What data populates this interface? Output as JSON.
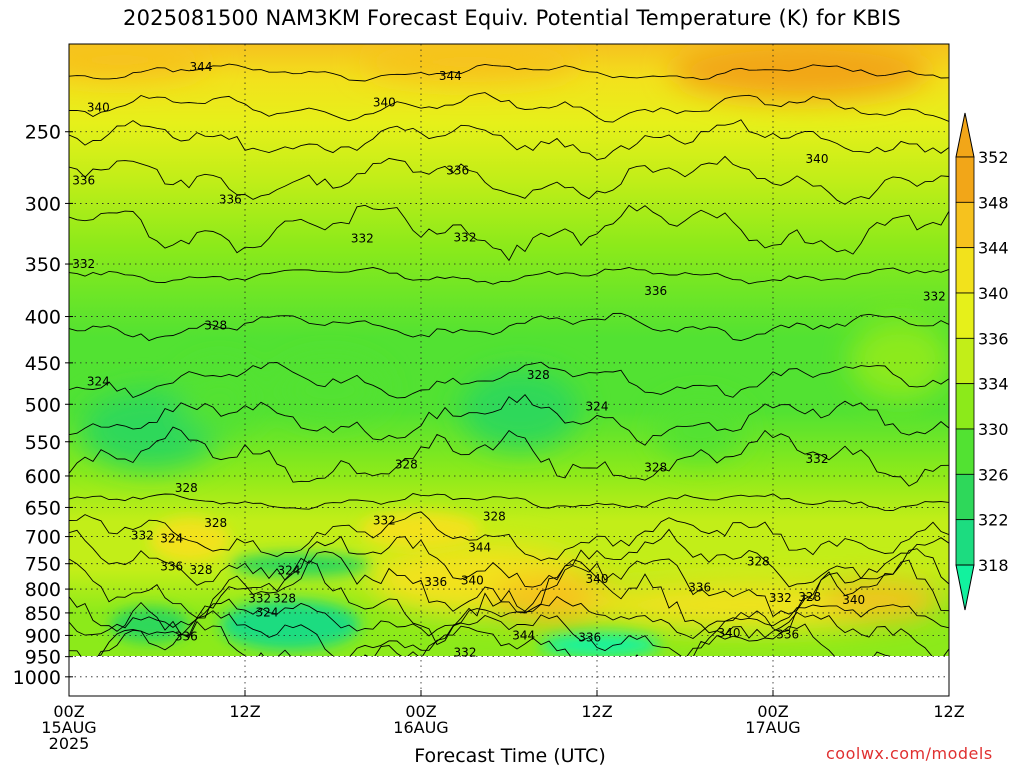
{
  "chart_data": {
    "type": "heatmap",
    "title": "2025081500 NAM3KM Forecast Equiv. Potential Temperature (K) for KBIS",
    "xlabel": "Forecast Time (UTC)",
    "ylabel": "",
    "x_ticks": [
      {
        "hour": 0,
        "label": [
          "00Z",
          "15AUG",
          "2025"
        ]
      },
      {
        "hour": 12,
        "label": [
          "12Z"
        ]
      },
      {
        "hour": 24,
        "label": [
          "00Z",
          "16AUG"
        ]
      },
      {
        "hour": 36,
        "label": [
          "12Z"
        ]
      },
      {
        "hour": 48,
        "label": [
          "00Z",
          "17AUG"
        ]
      },
      {
        "hour": 60,
        "label": [
          "12Z"
        ]
      }
    ],
    "xlim": [
      0,
      60
    ],
    "y_ticks": [
      250,
      300,
      350,
      400,
      450,
      500,
      550,
      600,
      650,
      700,
      750,
      800,
      850,
      900,
      950,
      1000
    ],
    "ylim": [
      1050,
      200
    ],
    "y_scale": "log",
    "colorbar": {
      "ticks": [
        352,
        348,
        344,
        340,
        336,
        334,
        330,
        326,
        322,
        318
      ],
      "colors": [
        "#f2a618",
        "#f6c21e",
        "#f2e21c",
        "#e6f01a",
        "#c2ee18",
        "#8cea1a",
        "#52e232",
        "#2ed85a",
        "#1cdc80",
        "#12f29e"
      ]
    },
    "below_ground": {
      "p_top": 955,
      "color": "#a0522d"
    },
    "contour_labels": [
      {
        "text": "344",
        "x": 9.0,
        "p": 212
      },
      {
        "text": "344",
        "x": 26.0,
        "p": 217
      },
      {
        "text": "340",
        "x": 2.0,
        "p": 235
      },
      {
        "text": "340",
        "x": 21.5,
        "p": 232
      },
      {
        "text": "340",
        "x": 51.0,
        "p": 268
      },
      {
        "text": "336",
        "x": 1.0,
        "p": 283
      },
      {
        "text": "336",
        "x": 11.0,
        "p": 297
      },
      {
        "text": "336",
        "x": 26.5,
        "p": 276
      },
      {
        "text": "336",
        "x": 40.0,
        "p": 375
      },
      {
        "text": "332",
        "x": 1.0,
        "p": 350
      },
      {
        "text": "332",
        "x": 20.0,
        "p": 328
      },
      {
        "text": "332",
        "x": 27.0,
        "p": 327
      },
      {
        "text": "332",
        "x": 59.0,
        "p": 380
      },
      {
        "text": "332",
        "x": 51.0,
        "p": 575
      },
      {
        "text": "328",
        "x": 10.0,
        "p": 409
      },
      {
        "text": "328",
        "x": 32.0,
        "p": 464
      },
      {
        "text": "328",
        "x": 23.0,
        "p": 583
      },
      {
        "text": "328",
        "x": 40.0,
        "p": 587
      },
      {
        "text": "328",
        "x": 8.0,
        "p": 619
      },
      {
        "text": "328",
        "x": 29.0,
        "p": 665
      },
      {
        "text": "328",
        "x": 10.0,
        "p": 676
      },
      {
        "text": "328",
        "x": 47.0,
        "p": 746
      },
      {
        "text": "324",
        "x": 2.0,
        "p": 472
      },
      {
        "text": "324",
        "x": 36.0,
        "p": 503
      },
      {
        "text": "324",
        "x": 7.0,
        "p": 703
      },
      {
        "text": "332",
        "x": 5.0,
        "p": 698
      },
      {
        "text": "332",
        "x": 21.5,
        "p": 672
      },
      {
        "text": "336",
        "x": 7.0,
        "p": 755
      },
      {
        "text": "328",
        "x": 9.0,
        "p": 762
      },
      {
        "text": "324",
        "x": 15.0,
        "p": 763
      },
      {
        "text": "344",
        "x": 28.0,
        "p": 720
      },
      {
        "text": "336",
        "x": 25.0,
        "p": 786
      },
      {
        "text": "340",
        "x": 27.5,
        "p": 783
      },
      {
        "text": "340",
        "x": 36.0,
        "p": 780
      },
      {
        "text": "332",
        "x": 13.0,
        "p": 819
      },
      {
        "text": "328",
        "x": 14.7,
        "p": 819
      },
      {
        "text": "324",
        "x": 13.5,
        "p": 849
      },
      {
        "text": "336",
        "x": 43.0,
        "p": 797
      },
      {
        "text": "332",
        "x": 48.5,
        "p": 818
      },
      {
        "text": "328",
        "x": 50.5,
        "p": 816
      },
      {
        "text": "340",
        "x": 53.5,
        "p": 823
      },
      {
        "text": "336",
        "x": 8.0,
        "p": 902
      },
      {
        "text": "344",
        "x": 31.0,
        "p": 900
      },
      {
        "text": "336",
        "x": 35.5,
        "p": 905
      },
      {
        "text": "340",
        "x": 45.0,
        "p": 895
      },
      {
        "text": "336",
        "x": 49.0,
        "p": 898
      },
      {
        "text": "332",
        "x": 27.0,
        "p": 940
      }
    ]
  },
  "credit": "coolwx.com/models"
}
